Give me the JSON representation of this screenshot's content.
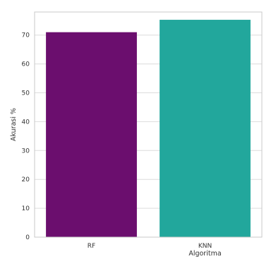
{
  "chart_data": {
    "type": "bar",
    "title": "",
    "xlabel": "Algoritma",
    "ylabel": "Akurasi %",
    "categories": [
      "RF",
      "KNN"
    ],
    "values": [
      71,
      75.3
    ],
    "ylim": [
      0,
      78
    ],
    "yticks": [
      0,
      10,
      20,
      30,
      40,
      50,
      60,
      70
    ],
    "ytick_labels": [
      "0",
      "10",
      "20",
      "30",
      "40",
      "50",
      "60",
      "70"
    ],
    "grid": "horizontal",
    "colors": [
      "#6b0e6e",
      "#22a79c"
    ],
    "gridline_color": "#dcdcdc",
    "frame_color": "#c8c8c8",
    "background": "#ffffff"
  }
}
